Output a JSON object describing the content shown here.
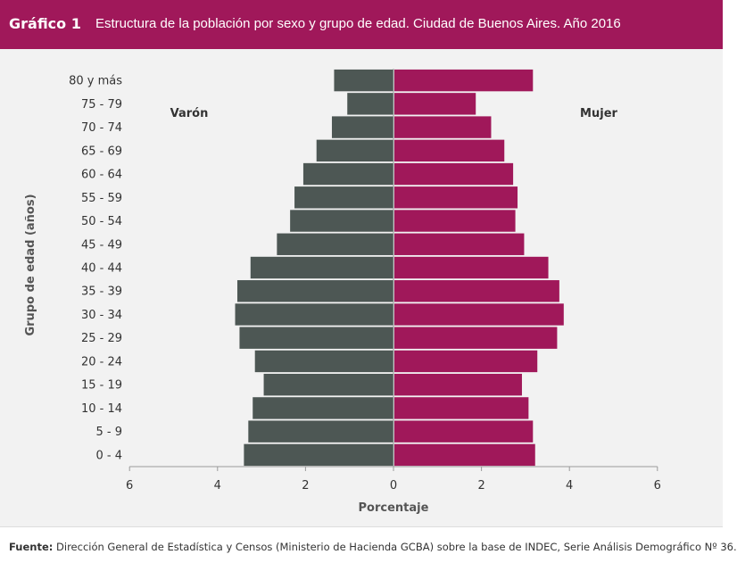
{
  "header": {
    "label": "Gráfico 1",
    "title": "Estructura de la población por sexo y grupo de edad. Ciudad de Buenos Aires. Año 2016"
  },
  "footer": {
    "source_label": "Fuente:",
    "source_text": "Dirección General de Estadística y Censos (Ministerio de Hacienda GCBA) sobre la base de INDEC, Serie Análisis Demográfico Nº 36."
  },
  "colors": {
    "header_bg": "#a0185a",
    "male": "#4d5754",
    "female": "#a0185a",
    "plot_bg": "#f2f2f2"
  },
  "chart_data": {
    "type": "bar",
    "orientation": "horizontal",
    "subtype": "population-pyramid",
    "xlabel": "Porcentaje",
    "ylabel": "Grupo de edad (años)",
    "xlim": [
      -6,
      6
    ],
    "xticks": [
      "6",
      "4",
      "2",
      "0",
      "2",
      "4",
      "6"
    ],
    "grid": false,
    "categories": [
      "0 - 4",
      "5 - 9",
      "10 - 14",
      "15 - 19",
      "20 - 24",
      "25 - 29",
      "30 - 34",
      "35 - 39",
      "40 - 44",
      "45 - 49",
      "50 - 54",
      "55 - 59",
      "60 - 64",
      "65 - 69",
      "70 - 74",
      "75 - 79",
      "80 y más"
    ],
    "series": [
      {
        "name": "Varón",
        "values": [
          3.4,
          3.3,
          3.2,
          2.95,
          3.15,
          3.5,
          3.6,
          3.55,
          3.25,
          2.65,
          2.35,
          2.25,
          2.05,
          1.75,
          1.4,
          1.05,
          1.35
        ]
      },
      {
        "name": "Mujer",
        "values": [
          3.2,
          3.15,
          3.05,
          2.9,
          3.25,
          3.7,
          3.85,
          3.75,
          3.5,
          2.95,
          2.75,
          2.8,
          2.7,
          2.5,
          2.2,
          1.85,
          3.15
        ]
      }
    ]
  }
}
